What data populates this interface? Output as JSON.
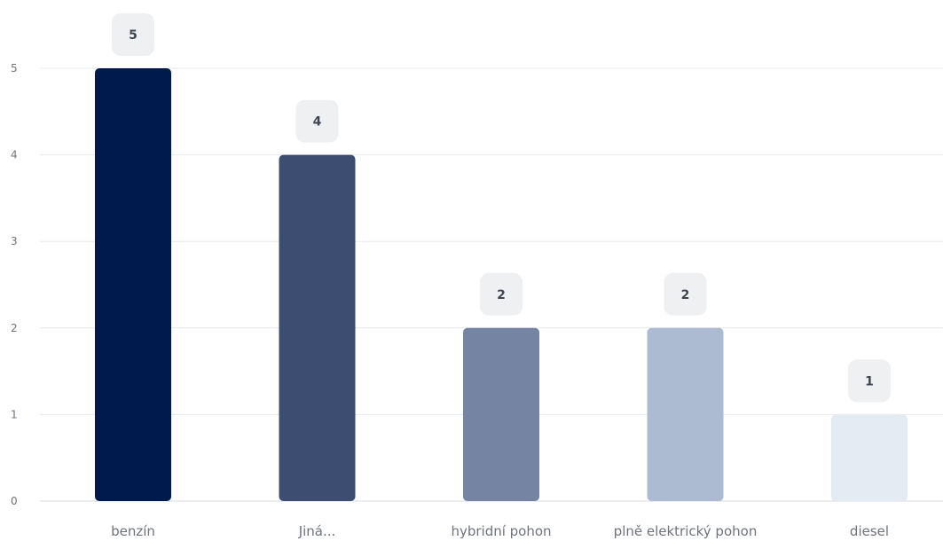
{
  "chart_data": {
    "type": "bar",
    "categories": [
      "benzín",
      "Jiná...",
      "hybridní pohon",
      "plně elektrický pohon",
      "diesel"
    ],
    "values": [
      5,
      4,
      2,
      2,
      1
    ],
    "colors": [
      "#001a4d",
      "#3d4d72",
      "#7484a2",
      "#adbbd2",
      "#e5ebf2"
    ],
    "y_ticks": [
      0,
      1,
      2,
      3,
      4,
      5
    ],
    "ylim": [
      0,
      5
    ],
    "grid": true,
    "legend": "none",
    "data_labels": true,
    "title": "",
    "xlabel": "",
    "ylabel": ""
  }
}
